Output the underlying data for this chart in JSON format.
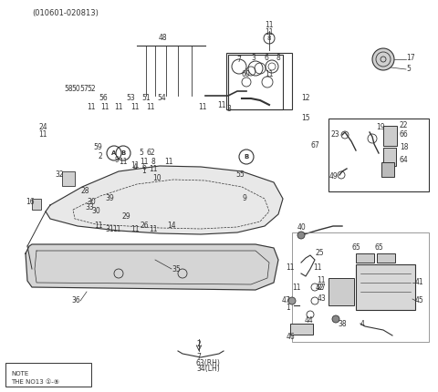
{
  "title": "(010601-020813)",
  "bg_color": "#ffffff",
  "line_color": "#333333",
  "label_fontsize": 5.5,
  "title_fontsize": 6,
  "fig_width": 4.8,
  "fig_height": 4.3,
  "note_text": "NOTE\nTHE NO13 ①-⑨",
  "bottom_label": "63(RH)\n34(LH)"
}
